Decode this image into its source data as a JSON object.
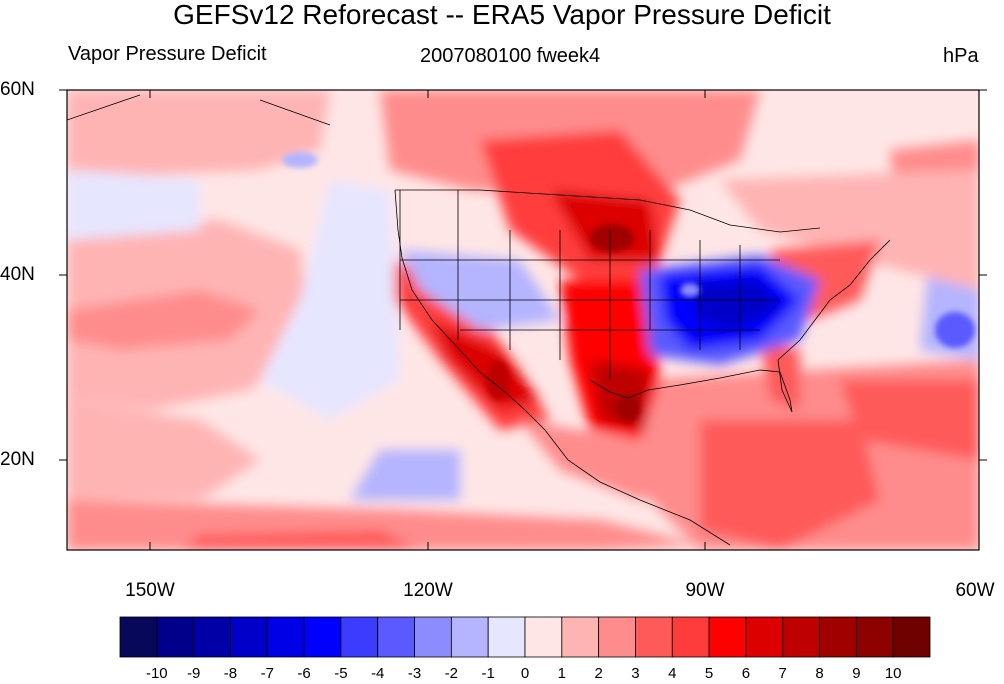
{
  "title": "GEFSv12 Reforecast -- ERA5 Vapor Pressure Deficit",
  "left_subtitle": "Vapor Pressure Deficit",
  "center_subtitle": "2007080100 fweek4",
  "right_subtitle": "hPa",
  "map": {
    "lat_range": [
      10,
      60
    ],
    "lon_range": [
      -160,
      -60
    ],
    "lat_ticks": [
      "60N",
      "40N",
      "20N"
    ],
    "lon_ticks": [
      "150W",
      "120W",
      "90W",
      "60W"
    ]
  },
  "colorbar": {
    "labels": [
      "-10",
      "-9",
      "-8",
      "-7",
      "-6",
      "-5",
      "-4",
      "-3",
      "-2",
      "-1",
      "0",
      "1",
      "2",
      "3",
      "4",
      "5",
      "6",
      "7",
      "8",
      "9",
      "10"
    ],
    "colors": [
      "#08085a",
      "#00008b",
      "#0000a6",
      "#0000c8",
      "#0000e6",
      "#0000ff",
      "#3c3cff",
      "#5a5aff",
      "#8c8cff",
      "#b4b4ff",
      "#e6e6ff",
      "#ffe6e6",
      "#ffb4b4",
      "#ff8c8c",
      "#ff5a5a",
      "#ff3c3c",
      "#ff0000",
      "#dc0000",
      "#be0000",
      "#a00000",
      "#8c0000",
      "#6e0000"
    ]
  }
}
